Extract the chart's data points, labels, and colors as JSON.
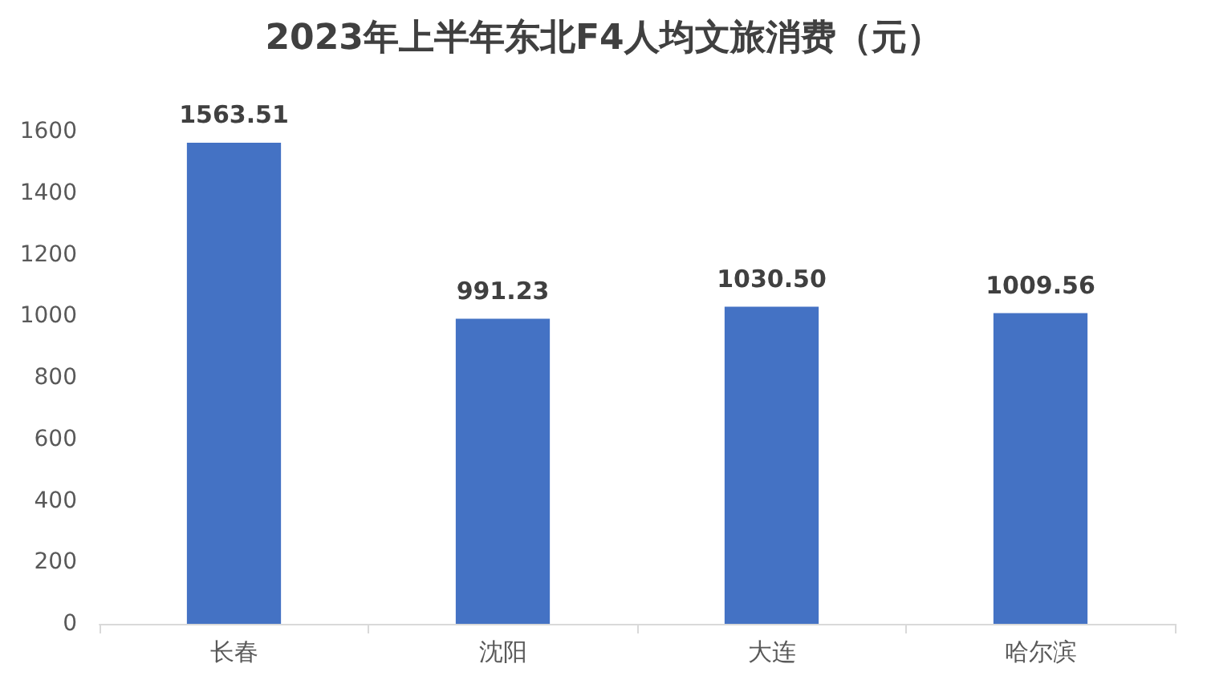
{
  "chart_data": {
    "type": "bar",
    "title": "2023年上半年东北F4人均文旅消费（元）",
    "categories": [
      "长春",
      "沈阳",
      "大连",
      "哈尔滨"
    ],
    "values": [
      1563.51,
      991.23,
      1030.5,
      1009.56
    ],
    "value_labels": [
      "1563.51",
      "991.23",
      "1030.50",
      "1009.56"
    ],
    "color": "#4472c4",
    "ylim": [
      0,
      1600
    ],
    "yticks": [
      0,
      200,
      400,
      600,
      800,
      1000,
      1200,
      1400,
      1600
    ],
    "grid": false
  }
}
